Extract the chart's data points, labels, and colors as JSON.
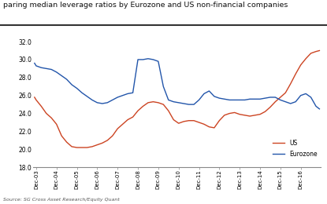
{
  "title": "paring median leverage ratios by Eurozone and US non-financial companies",
  "source": "Source: SG Cross Asset Research/Equity Quant",
  "ylim": [
    18.0,
    33.0
  ],
  "yticks": [
    18.0,
    20.0,
    22.0,
    24.0,
    26.0,
    28.0,
    30.0,
    32.0
  ],
  "us_color": "#cc4422",
  "ez_color": "#2255aa",
  "background": "#ffffff",
  "us_data": {
    "dates": [
      2002.92,
      2003.0,
      2003.25,
      2003.5,
      2003.75,
      2004.0,
      2004.25,
      2004.5,
      2004.75,
      2005.0,
      2005.25,
      2005.5,
      2005.75,
      2006.0,
      2006.25,
      2006.5,
      2006.75,
      2007.0,
      2007.25,
      2007.5,
      2007.75,
      2008.0,
      2008.25,
      2008.5,
      2008.75,
      2009.0,
      2009.25,
      2009.5,
      2009.75,
      2010.0,
      2010.25,
      2010.5,
      2010.75,
      2011.0,
      2011.25,
      2011.5,
      2011.75,
      2012.0,
      2012.25,
      2012.5,
      2012.75,
      2013.0,
      2013.25,
      2013.5,
      2013.75,
      2014.0,
      2014.25,
      2014.5,
      2014.75,
      2015.0,
      2015.25,
      2015.5,
      2015.75,
      2016.0,
      2016.25,
      2016.5,
      2016.75,
      2016.92
    ],
    "values": [
      25.8,
      25.5,
      24.8,
      24.0,
      23.5,
      22.8,
      21.5,
      20.8,
      20.3,
      20.2,
      20.2,
      20.2,
      20.3,
      20.5,
      20.7,
      21.0,
      21.5,
      22.3,
      22.8,
      23.3,
      23.6,
      24.3,
      24.8,
      25.2,
      25.3,
      25.2,
      25.0,
      24.3,
      23.3,
      22.9,
      23.1,
      23.2,
      23.2,
      23.0,
      22.8,
      22.5,
      22.4,
      23.2,
      23.8,
      24.0,
      24.1,
      23.9,
      23.8,
      23.7,
      23.8,
      23.9,
      24.2,
      24.7,
      25.3,
      25.8,
      26.3,
      27.3,
      28.4,
      29.4,
      30.1,
      30.7,
      30.9,
      31.0
    ]
  },
  "ez_data": {
    "dates": [
      2002.92,
      2003.0,
      2003.25,
      2003.5,
      2003.75,
      2004.0,
      2004.25,
      2004.5,
      2004.75,
      2005.0,
      2005.25,
      2005.5,
      2005.75,
      2006.0,
      2006.25,
      2006.5,
      2006.75,
      2007.0,
      2007.25,
      2007.5,
      2007.75,
      2008.0,
      2008.25,
      2008.5,
      2008.75,
      2009.0,
      2009.25,
      2009.5,
      2009.75,
      2010.0,
      2010.25,
      2010.5,
      2010.75,
      2011.0,
      2011.25,
      2011.5,
      2011.75,
      2012.0,
      2012.25,
      2012.5,
      2012.75,
      2013.0,
      2013.25,
      2013.5,
      2013.75,
      2014.0,
      2014.25,
      2014.5,
      2014.75,
      2015.0,
      2015.25,
      2015.5,
      2015.75,
      2016.0,
      2016.25,
      2016.5,
      2016.75,
      2016.92
    ],
    "values": [
      29.6,
      29.3,
      29.1,
      29.0,
      28.9,
      28.6,
      28.2,
      27.8,
      27.2,
      26.8,
      26.3,
      25.9,
      25.5,
      25.2,
      25.1,
      25.2,
      25.5,
      25.8,
      26.0,
      26.2,
      26.3,
      30.0,
      30.0,
      30.1,
      30.0,
      29.8,
      27.0,
      25.5,
      25.3,
      25.2,
      25.1,
      25.0,
      25.0,
      25.5,
      26.2,
      26.5,
      25.9,
      25.7,
      25.6,
      25.5,
      25.5,
      25.5,
      25.5,
      25.6,
      25.6,
      25.6,
      25.7,
      25.8,
      25.8,
      25.5,
      25.3,
      25.1,
      25.3,
      26.0,
      26.2,
      25.8,
      24.8,
      24.5
    ]
  },
  "xtick_labels": [
    "Dec-03",
    "Dec-04",
    "Dec-05",
    "Dec-06",
    "Dec-07",
    "Dec-08",
    "Dec-09",
    "Dec-10",
    "Dec-11",
    "Dec-12",
    "Dec-13",
    "Dec-14",
    "Dec-15",
    "Dec-16"
  ],
  "xtick_positions": [
    2003.0,
    2004.0,
    2005.0,
    2006.0,
    2007.0,
    2008.0,
    2009.0,
    2010.0,
    2011.0,
    2012.0,
    2013.0,
    2014.0,
    2015.0,
    2016.0
  ]
}
